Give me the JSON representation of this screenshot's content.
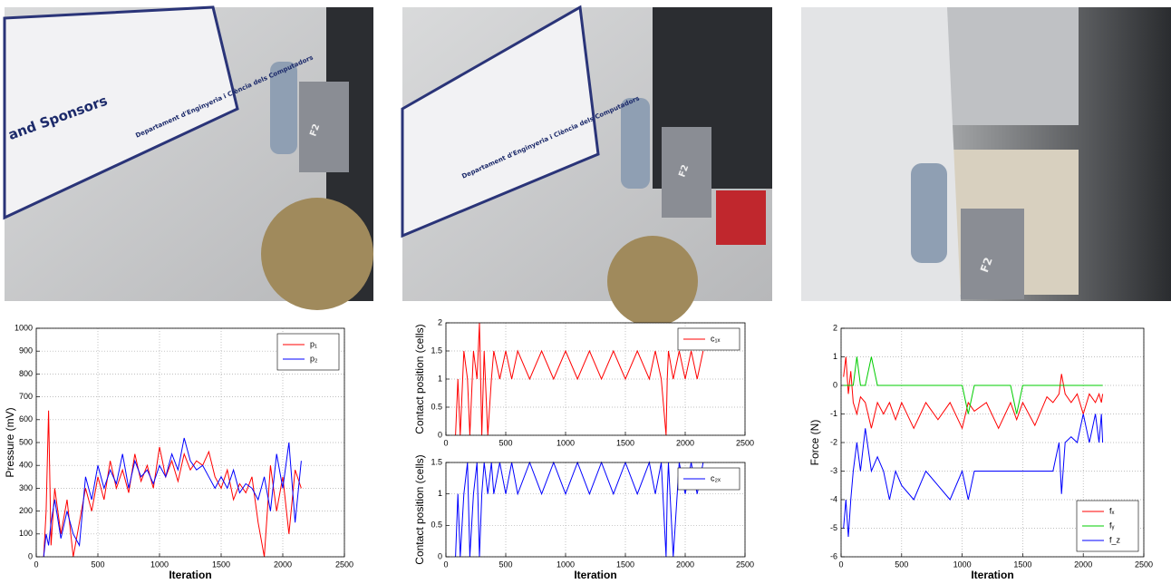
{
  "photos": [
    {
      "texts": [
        "and Sponsors",
        "Departament d'Enginyeria i Ciència dels Computadors",
        "F2"
      ]
    },
    {
      "texts": [
        "Departament d'Enginyeria i Ciència dels Computadors",
        "F2"
      ]
    },
    {
      "texts": [
        "F2"
      ]
    }
  ],
  "chart_data": [
    {
      "type": "line",
      "ylabel": "Pressure (mV)",
      "xlabel": "Iteration",
      "xlim": [
        0,
        2500
      ],
      "xticks": [
        0,
        500,
        1000,
        1500,
        2000,
        2500
      ],
      "ylim": [
        0,
        1000
      ],
      "yticks": [
        0,
        100,
        200,
        300,
        400,
        500,
        600,
        700,
        800,
        900,
        1000
      ],
      "grid": true,
      "legend": "upper right",
      "x": [
        60,
        80,
        100,
        120,
        150,
        200,
        250,
        300,
        350,
        400,
        450,
        500,
        550,
        600,
        650,
        700,
        750,
        800,
        850,
        900,
        950,
        1000,
        1050,
        1100,
        1150,
        1200,
        1250,
        1300,
        1350,
        1400,
        1450,
        1500,
        1550,
        1600,
        1650,
        1700,
        1750,
        1800,
        1850,
        1900,
        1950,
        2000,
        2050,
        2100,
        2150
      ],
      "series": [
        {
          "name": "p₁",
          "color": "#ff0000",
          "values": [
            0,
            200,
            640,
            50,
            300,
            100,
            250,
            0,
            150,
            300,
            200,
            350,
            250,
            420,
            300,
            380,
            280,
            450,
            330,
            400,
            300,
            480,
            350,
            420,
            330,
            450,
            380,
            420,
            400,
            460,
            350,
            300,
            380,
            250,
            320,
            280,
            350,
            150,
            0,
            400,
            200,
            350,
            100,
            380,
            300
          ]
        },
        {
          "name": "p₂",
          "color": "#0000ff",
          "values": [
            0,
            100,
            50,
            150,
            250,
            80,
            200,
            100,
            50,
            350,
            250,
            400,
            300,
            380,
            320,
            450,
            300,
            420,
            350,
            380,
            320,
            400,
            350,
            450,
            380,
            520,
            420,
            380,
            400,
            350,
            300,
            350,
            300,
            380,
            280,
            320,
            300,
            250,
            350,
            200,
            450,
            300,
            500,
            150,
            420
          ]
        }
      ]
    },
    {
      "type": "line",
      "ylabel": "Contact position (cells)",
      "xlim": [
        0,
        2500
      ],
      "xticks": [
        0,
        500,
        1000,
        1500,
        2000,
        2500
      ],
      "ylim": [
        0,
        2
      ],
      "yticks": [
        0,
        0.5,
        1,
        1.5,
        2
      ],
      "grid": true,
      "legend": "upper right",
      "x": [
        80,
        100,
        120,
        150,
        180,
        200,
        230,
        260,
        280,
        300,
        320,
        350,
        380,
        400,
        450,
        500,
        550,
        600,
        700,
        800,
        900,
        1000,
        1100,
        1200,
        1300,
        1400,
        1500,
        1600,
        1700,
        1750,
        1800,
        1840,
        1850,
        1860,
        1900,
        1950,
        2000,
        2050,
        2100,
        2150
      ],
      "series": [
        {
          "name": "c₁ₓ",
          "color": "#ff0000",
          "values": [
            0,
            1,
            0,
            1.5,
            1,
            0,
            1.5,
            1,
            2,
            0,
            1.5,
            0,
            1,
            1.5,
            1,
            1.5,
            1,
            1.5,
            1,
            1.5,
            1,
            1.5,
            1,
            1.5,
            1,
            1.5,
            1,
            1.5,
            1,
            1.5,
            1,
            0,
            1,
            1.5,
            1,
            1.5,
            1,
            1.5,
            1,
            1.5
          ]
        }
      ]
    },
    {
      "type": "line",
      "ylabel": "Contact position (cells)",
      "xlabel": "Iteration",
      "xlim": [
        0,
        2500
      ],
      "xticks": [
        0,
        500,
        1000,
        1500,
        2000,
        2500
      ],
      "ylim": [
        0,
        1.5
      ],
      "yticks": [
        0,
        0.5,
        1,
        1.5
      ],
      "grid": true,
      "legend": "upper right",
      "x": [
        80,
        100,
        120,
        150,
        180,
        200,
        230,
        260,
        280,
        300,
        320,
        350,
        380,
        400,
        450,
        500,
        550,
        600,
        700,
        800,
        900,
        1000,
        1100,
        1200,
        1300,
        1400,
        1500,
        1600,
        1700,
        1750,
        1800,
        1840,
        1850,
        1860,
        1900,
        1950,
        2000,
        2050,
        2100,
        2150
      ],
      "series": [
        {
          "name": "c₂ₓ",
          "color": "#0000ff",
          "values": [
            0,
            1,
            0,
            1,
            1.5,
            0,
            1,
            1.5,
            0,
            1,
            1.5,
            1,
            1.5,
            1,
            1.5,
            1,
            1.5,
            1,
            1.5,
            1,
            1.5,
            1,
            1.5,
            1,
            1.5,
            1,
            1.5,
            1,
            1.5,
            1,
            1.5,
            0,
            1,
            1.5,
            0,
            1.5,
            1,
            1.5,
            1,
            1.5
          ]
        }
      ]
    },
    {
      "type": "line",
      "ylabel": "Force (N)",
      "xlabel": "Iteration",
      "xlim": [
        0,
        2500
      ],
      "xticks": [
        0,
        500,
        1000,
        1500,
        2000,
        2500
      ],
      "ylim": [
        -6,
        2
      ],
      "yticks": [
        -6,
        -5,
        -4,
        -3,
        -2,
        -1,
        0,
        1,
        2
      ],
      "grid": true,
      "legend": "lower right",
      "x": [
        20,
        40,
        60,
        80,
        100,
        130,
        160,
        200,
        250,
        300,
        350,
        400,
        450,
        500,
        600,
        700,
        800,
        900,
        1000,
        1050,
        1100,
        1200,
        1300,
        1400,
        1450,
        1500,
        1600,
        1700,
        1750,
        1800,
        1820,
        1850,
        1900,
        1950,
        2000,
        2050,
        2100,
        2130,
        2150,
        2160
      ],
      "series": [
        {
          "name": "fₓ",
          "color": "#ff0000",
          "values": [
            0.3,
            1,
            -0.3,
            0.5,
            -0.6,
            -1,
            -0.4,
            -0.6,
            -1.5,
            -0.6,
            -1,
            -0.6,
            -1.2,
            -0.6,
            -1.5,
            -0.6,
            -1.2,
            -0.6,
            -1.5,
            -0.6,
            -0.9,
            -0.6,
            -1.5,
            -0.6,
            -1.2,
            -0.6,
            -1.4,
            -0.4,
            -0.6,
            -0.3,
            0.4,
            -0.3,
            -0.6,
            -0.3,
            -1,
            -0.3,
            -0.6,
            -0.3,
            -0.6,
            -0.3
          ]
        },
        {
          "name": "fᵧ",
          "color": "#00cc00",
          "values": [
            0,
            0,
            0,
            0,
            0,
            1,
            0,
            0,
            1,
            0,
            0,
            0,
            0,
            0,
            0,
            0,
            0,
            0,
            0,
            -1,
            0,
            0,
            0,
            0,
            -1,
            0,
            0,
            0,
            0,
            0,
            0,
            0,
            0,
            0,
            0,
            0,
            0,
            0,
            0,
            0
          ]
        },
        {
          "name": "f_z",
          "color": "#0000ff",
          "values": [
            -5,
            -4,
            -5.3,
            -4,
            -3,
            -2,
            -3,
            -1.5,
            -3,
            -2.5,
            -3,
            -4,
            -3,
            -3.5,
            -4,
            -3,
            -3.5,
            -4,
            -3,
            -4,
            -3,
            -3,
            -3,
            -3,
            -3,
            -3,
            -3,
            -3,
            -3,
            -2,
            -3.8,
            -2,
            -1.8,
            -2,
            -1,
            -2,
            -1,
            -2,
            -1,
            -2
          ]
        }
      ]
    }
  ]
}
